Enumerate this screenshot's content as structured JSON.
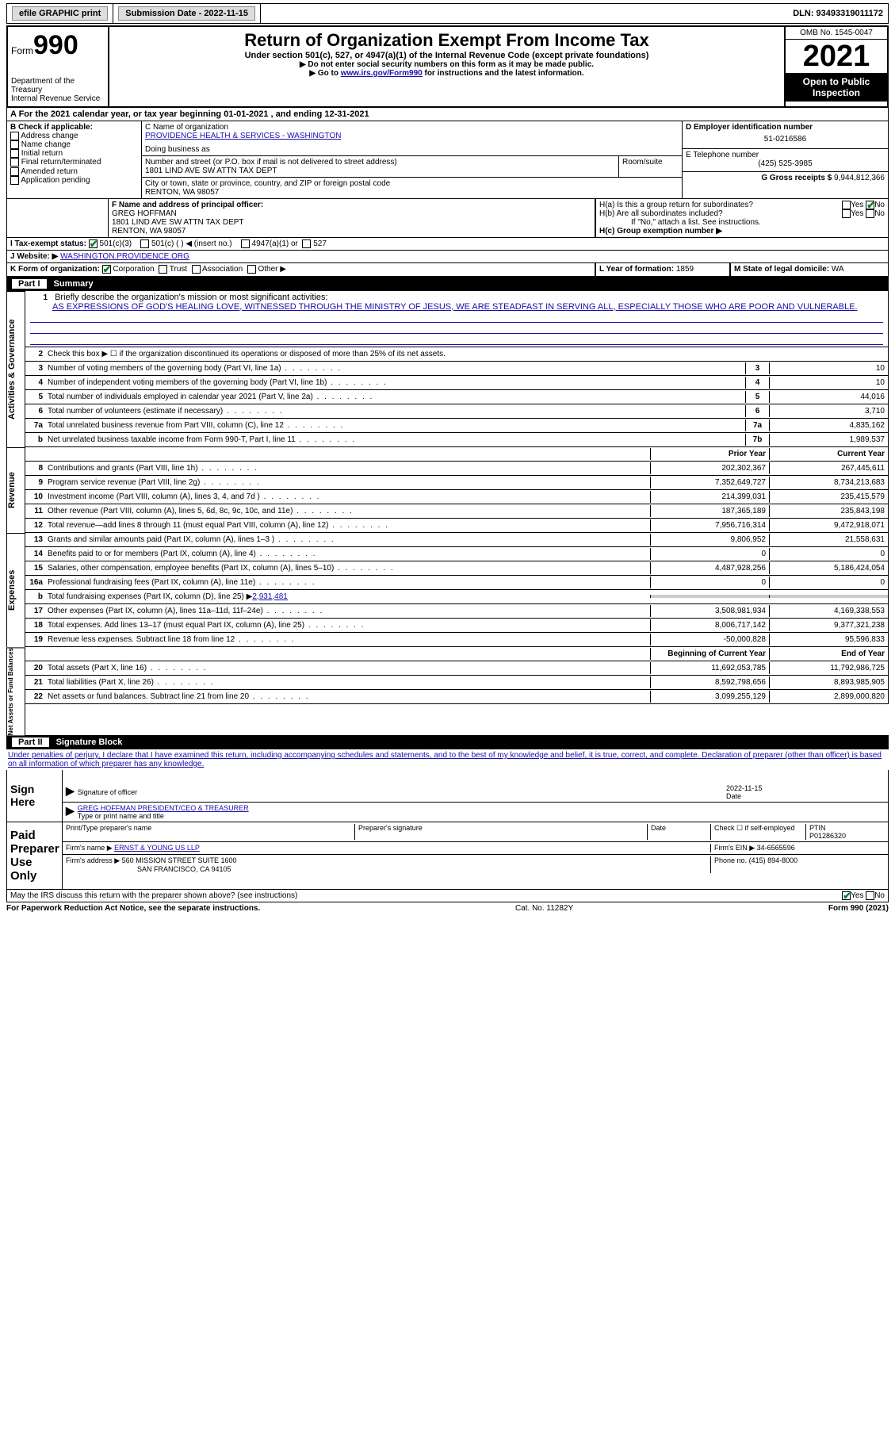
{
  "topbar": {
    "efile": "efile GRAPHIC print",
    "submission_label": "Submission Date - 2022-11-15",
    "dln_label": "DLN: 93493319011172"
  },
  "header": {
    "form_prefix": "Form",
    "form_number": "990",
    "dept": "Department of the Treasury",
    "irs": "Internal Revenue Service",
    "title": "Return of Organization Exempt From Income Tax",
    "subtitle": "Under section 501(c), 527, or 4947(a)(1) of the Internal Revenue Code (except private foundations)",
    "note1": "▶ Do not enter social security numbers on this form as it may be made public.",
    "note2_prefix": "▶ Go to ",
    "note2_link": "www.irs.gov/Form990",
    "note2_suffix": " for instructions and the latest information.",
    "omb": "OMB No. 1545-0047",
    "year": "2021",
    "open": "Open to Public Inspection"
  },
  "section_a": {
    "prefix": "A For the 2021 calendar year, or tax year beginning ",
    "begin": "01-01-2021",
    "mid": " , and ending ",
    "end": "12-31-2021"
  },
  "section_b": {
    "label": "B Check if applicable:",
    "items": [
      "Address change",
      "Name change",
      "Initial return",
      "Final return/terminated",
      "Amended return",
      "Application pending"
    ]
  },
  "section_c": {
    "name_label": "C Name of organization",
    "org_name": "PROVIDENCE HEALTH & SERVICES - WASHINGTON",
    "dba_label": "Doing business as",
    "street_label": "Number and street (or P.O. box if mail is not delivered to street address)",
    "room_label": "Room/suite",
    "street": "1801 LIND AVE SW ATTN TAX DEPT",
    "city_label": "City or town, state or province, country, and ZIP or foreign postal code",
    "city": "RENTON, WA  98057"
  },
  "section_d": {
    "label": "D Employer identification number",
    "value": "51-0216586"
  },
  "section_e": {
    "label": "E Telephone number",
    "value": "(425) 525-3985"
  },
  "section_g": {
    "label": "G Gross receipts $",
    "value": "9,944,812,366"
  },
  "section_f": {
    "label": "F  Name and address of principal officer:",
    "name": "GREG HOFFMAN",
    "addr1": "1801 LIND AVE SW ATTN TAX DEPT",
    "addr2": "RENTON, WA  98057"
  },
  "section_h": {
    "a_label": "H(a)  Is this a group return for subordinates?",
    "b_label": "H(b)  Are all subordinates included?",
    "b_note": "If \"No,\" attach a list. See instructions.",
    "c_label": "H(c)  Group exemption number ▶",
    "yes": "Yes",
    "no": "No"
  },
  "section_i": {
    "label": "I   Tax-exempt status:",
    "opt1": "501(c)(3)",
    "opt2": "501(c) (  ) ◀ (insert no.)",
    "opt3": "4947(a)(1) or",
    "opt4": "527"
  },
  "section_j": {
    "label": "J   Website: ▶",
    "value": "WASHINGTON.PROVIDENCE.ORG"
  },
  "section_k": {
    "label": "K Form of organization:",
    "opts": [
      "Corporation",
      "Trust",
      "Association",
      "Other ▶"
    ]
  },
  "section_l": {
    "label": "L Year of formation:",
    "value": "1859"
  },
  "section_m": {
    "label": "M State of legal domicile:",
    "value": "WA"
  },
  "part1": {
    "num": "Part I",
    "title": "Summary"
  },
  "summary": {
    "line1_label": "Briefly describe the organization's mission or most significant activities:",
    "line1_text": "AS EXPRESSIONS OF GOD'S HEALING LOVE, WITNESSED THROUGH THE MINISTRY OF JESUS, WE ARE STEADFAST IN SERVING ALL, ESPECIALLY THOSE WHO ARE POOR AND VULNERABLE.",
    "line2": "Check this box ▶ ☐  if the organization discontinued its operations or disposed of more than 25% of its net assets.",
    "rows_ag": [
      {
        "n": "3",
        "label": "Number of voting members of the governing body (Part VI, line 1a)",
        "box": "3",
        "val": "10"
      },
      {
        "n": "4",
        "label": "Number of independent voting members of the governing body (Part VI, line 1b)",
        "box": "4",
        "val": "10"
      },
      {
        "n": "5",
        "label": "Total number of individuals employed in calendar year 2021 (Part V, line 2a)",
        "box": "5",
        "val": "44,016"
      },
      {
        "n": "6",
        "label": "Total number of volunteers (estimate if necessary)",
        "box": "6",
        "val": "3,710"
      },
      {
        "n": "7a",
        "label": "Total unrelated business revenue from Part VIII, column (C), line 12",
        "box": "7a",
        "val": "4,835,162"
      },
      {
        "n": "b",
        "label": "Net unrelated business taxable income from Form 990-T, Part I, line 11",
        "box": "7b",
        "val": "1,989,537"
      }
    ],
    "col_prior": "Prior Year",
    "col_current": "Current Year",
    "rows_rev": [
      {
        "n": "8",
        "label": "Contributions and grants (Part VIII, line 1h)",
        "prior": "202,302,367",
        "curr": "267,445,611"
      },
      {
        "n": "9",
        "label": "Program service revenue (Part VIII, line 2g)",
        "prior": "7,352,649,727",
        "curr": "8,734,213,683"
      },
      {
        "n": "10",
        "label": "Investment income (Part VIII, column (A), lines 3, 4, and 7d )",
        "prior": "214,399,031",
        "curr": "235,415,579"
      },
      {
        "n": "11",
        "label": "Other revenue (Part VIII, column (A), lines 5, 6d, 8c, 9c, 10c, and 11e)",
        "prior": "187,365,189",
        "curr": "235,843,198"
      },
      {
        "n": "12",
        "label": "Total revenue—add lines 8 through 11 (must equal Part VIII, column (A), line 12)",
        "prior": "7,956,716,314",
        "curr": "9,472,918,071"
      }
    ],
    "rows_exp": [
      {
        "n": "13",
        "label": "Grants and similar amounts paid (Part IX, column (A), lines 1–3 )",
        "prior": "9,806,952",
        "curr": "21,558,631"
      },
      {
        "n": "14",
        "label": "Benefits paid to or for members (Part IX, column (A), line 4)",
        "prior": "0",
        "curr": "0"
      },
      {
        "n": "15",
        "label": "Salaries, other compensation, employee benefits (Part IX, column (A), lines 5–10)",
        "prior": "4,487,928,256",
        "curr": "5,186,424,054"
      },
      {
        "n": "16a",
        "label": "Professional fundraising fees (Part IX, column (A), line 11e)",
        "prior": "0",
        "curr": "0"
      }
    ],
    "line16b_prefix": "Total fundraising expenses (Part IX, column (D), line 25) ▶",
    "line16b_val": "2,931,481",
    "rows_exp2": [
      {
        "n": "17",
        "label": "Other expenses (Part IX, column (A), lines 11a–11d, 11f–24e)",
        "prior": "3,508,981,934",
        "curr": "4,169,338,553"
      },
      {
        "n": "18",
        "label": "Total expenses. Add lines 13–17 (must equal Part IX, column (A), line 25)",
        "prior": "8,006,717,142",
        "curr": "9,377,321,238"
      },
      {
        "n": "19",
        "label": "Revenue less expenses. Subtract line 18 from line 12",
        "prior": "-50,000,828",
        "curr": "95,596,833"
      }
    ],
    "col_begin": "Beginning of Current Year",
    "col_end": "End of Year",
    "rows_net": [
      {
        "n": "20",
        "label": "Total assets (Part X, line 16)",
        "prior": "11,692,053,785",
        "curr": "11,792,986,725"
      },
      {
        "n": "21",
        "label": "Total liabilities (Part X, line 26)",
        "prior": "8,592,798,656",
        "curr": "8,893,985,905"
      },
      {
        "n": "22",
        "label": "Net assets or fund balances. Subtract line 21 from line 20",
        "prior": "3,099,255,129",
        "curr": "2,899,000,820"
      }
    ],
    "vert_ag": "Activities & Governance",
    "vert_rev": "Revenue",
    "vert_exp": "Expenses",
    "vert_net": "Net Assets or Fund Balances"
  },
  "part2": {
    "num": "Part II",
    "title": "Signature Block"
  },
  "sig": {
    "decl": "Under penalties of perjury, I declare that I have examined this return, including accompanying schedules and statements, and to the best of my knowledge and belief, it is true, correct, and complete. Declaration of preparer (other than officer) is based on all information of which preparer has any knowledge.",
    "sign_here": "Sign Here",
    "sig_officer": "Signature of officer",
    "date": "Date",
    "date_val": "2022-11-15",
    "name_title": "GREG HOFFMAN  PRESIDENT/CEO & TREASURER",
    "name_label": "Type or print name and title",
    "paid": "Paid Preparer Use Only",
    "print_name": "Print/Type preparer's name",
    "prep_sig": "Preparer's signature",
    "check_self": "Check ☐ if self-employed",
    "ptin_label": "PTIN",
    "ptin": "P01286320",
    "firm_name_label": "Firm's name    ▶",
    "firm_name": "ERNST & YOUNG US LLP",
    "firm_ein_label": "Firm's EIN ▶",
    "firm_ein": "34-6565596",
    "firm_addr_label": "Firm's address ▶",
    "firm_addr1": "560 MISSION STREET SUITE 1600",
    "firm_addr2": "SAN FRANCISCO, CA  94105",
    "phone_label": "Phone no.",
    "phone": "(415) 894-8000",
    "discuss": "May the IRS discuss this return with the preparer shown above? (see instructions)"
  },
  "footer": {
    "left": "For Paperwork Reduction Act Notice, see the separate instructions.",
    "mid": "Cat. No. 11282Y",
    "right": "Form 990 (2021)"
  }
}
